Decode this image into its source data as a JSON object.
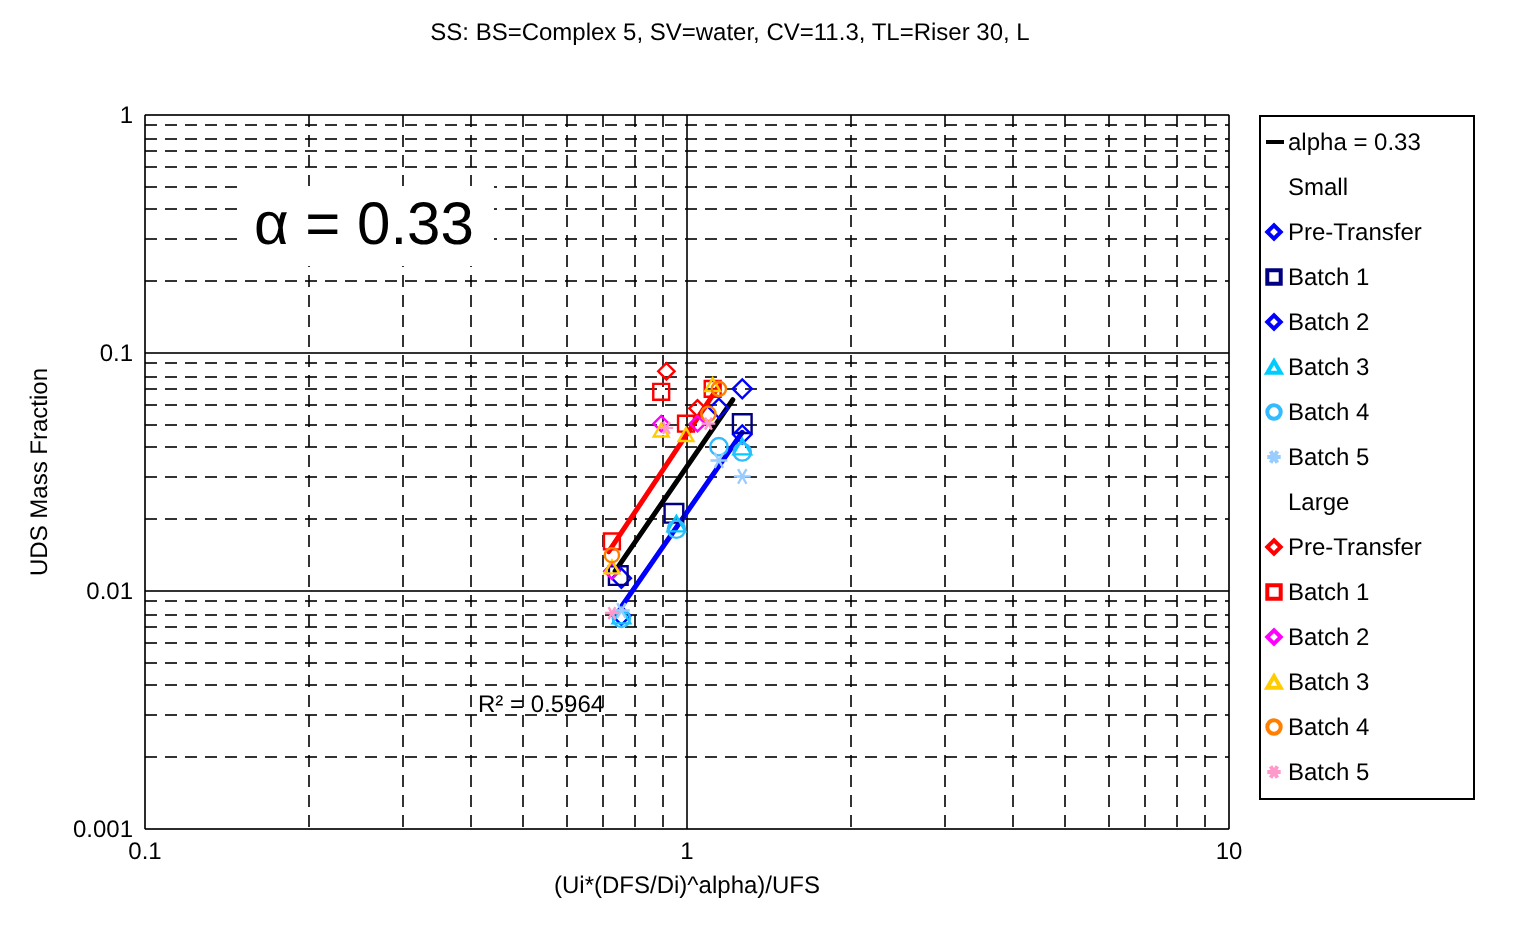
{
  "chart_data": {
    "type": "scatter",
    "title": "SS:  BS=Complex 5, SV=water, CV=11.3, TL=Riser 30, L",
    "xlabel": "(Ui*(DFS/Di)^alpha)/UFS",
    "ylabel": "UDS Mass Fraction",
    "log": "xy",
    "grid": true,
    "legend": "right",
    "xlim": [
      0.1,
      10
    ],
    "ylim": [
      0.001,
      1
    ],
    "xticks": [
      0.1,
      {
        "value": 0.2,
        "label": null
      },
      {
        "value": 0.3,
        "label": null
      },
      {
        "value": 0.4,
        "label": null
      },
      {
        "value": 0.5,
        "label": null
      },
      {
        "value": 0.6,
        "label": null
      },
      {
        "value": 0.7,
        "label": null
      },
      {
        "value": 0.8,
        "label": null
      },
      {
        "value": 0.9,
        "label": null
      },
      1,
      {
        "value": 2,
        "label": null
      },
      {
        "value": 3,
        "label": null
      },
      {
        "value": 4,
        "label": null
      },
      {
        "value": 5,
        "label": null
      },
      {
        "value": 6,
        "label": null
      },
      {
        "value": 7,
        "label": null
      },
      {
        "value": 8,
        "label": null
      },
      {
        "value": 9,
        "label": null
      },
      10
    ],
    "yticks": [
      0.001,
      {
        "value": 0.002,
        "label": null
      },
      {
        "value": 0.003,
        "label": null
      },
      {
        "value": 0.004,
        "label": null
      },
      {
        "value": 0.005,
        "label": null
      },
      {
        "value": 0.006,
        "label": null
      },
      {
        "value": 0.007,
        "label": null
      },
      {
        "value": 0.008,
        "label": null
      },
      {
        "value": 0.009,
        "label": null
      },
      0.01,
      {
        "value": 0.02,
        "label": null
      },
      {
        "value": 0.03,
        "label": null
      },
      {
        "value": 0.04,
        "label": null
      },
      {
        "value": 0.05,
        "label": null
      },
      {
        "value": 0.06,
        "label": null
      },
      {
        "value": 0.07,
        "label": null
      },
      {
        "value": 0.08,
        "label": null
      },
      {
        "value": 0.09,
        "label": null
      },
      0.1,
      {
        "value": 0.2,
        "label": null
      },
      {
        "value": 0.3,
        "label": null
      },
      {
        "value": 0.4,
        "label": null
      },
      {
        "value": 0.5,
        "label": null
      },
      {
        "value": 0.6,
        "label": null
      },
      {
        "value": 0.7,
        "label": null
      },
      {
        "value": 0.8,
        "label": null
      },
      {
        "value": 0.9,
        "label": null
      },
      1
    ],
    "annotations": [
      "α = 0.33",
      "R² = 0.5964",
      "Small",
      "Large"
    ],
    "series": [
      {
        "name": "alpha = 0.33",
        "type": "line",
        "color": "#000000",
        "x": [
          0.74,
          1.22
        ],
        "values": [
          0.012,
          0.063
        ]
      },
      {
        "name": "Pre-Transfer",
        "marker": "diamond",
        "color": "#0000ff",
        "x": [
          0.76,
          1.15,
          1.27
        ],
        "values": [
          0.0112,
          0.058,
          0.07
        ]
      },
      {
        "name": "Batch 1",
        "marker": "square",
        "color": "#000080",
        "x": [
          0.75,
          0.95,
          1.27
        ],
        "values": [
          0.0115,
          0.021,
          0.05
        ]
      },
      {
        "name": "Batch 2",
        "marker": "diamond",
        "color": "#0000ff",
        "x": [
          0.76,
          1.27
        ],
        "values": [
          0.0078,
          0.045
        ]
      },
      {
        "name": "Batch 3",
        "marker": "triangle",
        "color": "#00ccff",
        "x": [
          0.76,
          0.96,
          1.27
        ],
        "values": [
          0.0078,
          0.019,
          0.04
        ]
      },
      {
        "name": "Batch 4",
        "marker": "circle",
        "color": "#33bbff",
        "x": [
          0.76,
          0.96,
          1.15,
          1.27
        ],
        "values": [
          0.0076,
          0.018,
          0.04,
          0.038
        ]
      },
      {
        "name": "Batch 5",
        "marker": "cross",
        "color": "#99ccff",
        "x": [
          0.76,
          1.15,
          1.27
        ],
        "values": [
          0.0082,
          0.035,
          0.03
        ]
      },
      {
        "name": "Pre-Transfer",
        "marker": "diamond",
        "color": "#ff0000",
        "x": [
          0.92,
          1.05
        ],
        "values": [
          0.083,
          0.058
        ]
      },
      {
        "name": "Batch 1",
        "marker": "square",
        "color": "#ff0000",
        "x": [
          0.73,
          0.9,
          1.0,
          1.12
        ],
        "values": [
          0.016,
          0.068,
          0.05,
          0.07
        ]
      },
      {
        "name": "Batch 2",
        "marker": "diamond",
        "color": "#ff00ff",
        "x": [
          0.73,
          0.9,
          1.05
        ],
        "values": [
          0.012,
          0.05,
          0.05
        ]
      },
      {
        "name": "Batch 3",
        "marker": "triangle",
        "color": "#ffcc00",
        "x": [
          0.73,
          0.9,
          1.0,
          1.12
        ],
        "values": [
          0.0125,
          0.047,
          0.045,
          0.073
        ]
      },
      {
        "name": "Batch 4",
        "marker": "circle",
        "color": "#ff8000",
        "x": [
          0.73,
          1.1,
          1.15
        ],
        "values": [
          0.014,
          0.055,
          0.07
        ]
      },
      {
        "name": "Batch 5",
        "marker": "cross",
        "color": "#ff99cc",
        "x": [
          0.73,
          0.92,
          1.1
        ],
        "values": [
          0.008,
          0.048,
          0.05
        ]
      },
      {
        "type": "line",
        "color": "#ff0000",
        "x": [
          0.72,
          1.15
        ],
        "values": [
          0.0145,
          0.072
        ]
      },
      {
        "type": "line",
        "color": "#0000ff",
        "x": [
          0.76,
          1.27
        ],
        "values": [
          0.0085,
          0.046
        ]
      }
    ]
  }
}
